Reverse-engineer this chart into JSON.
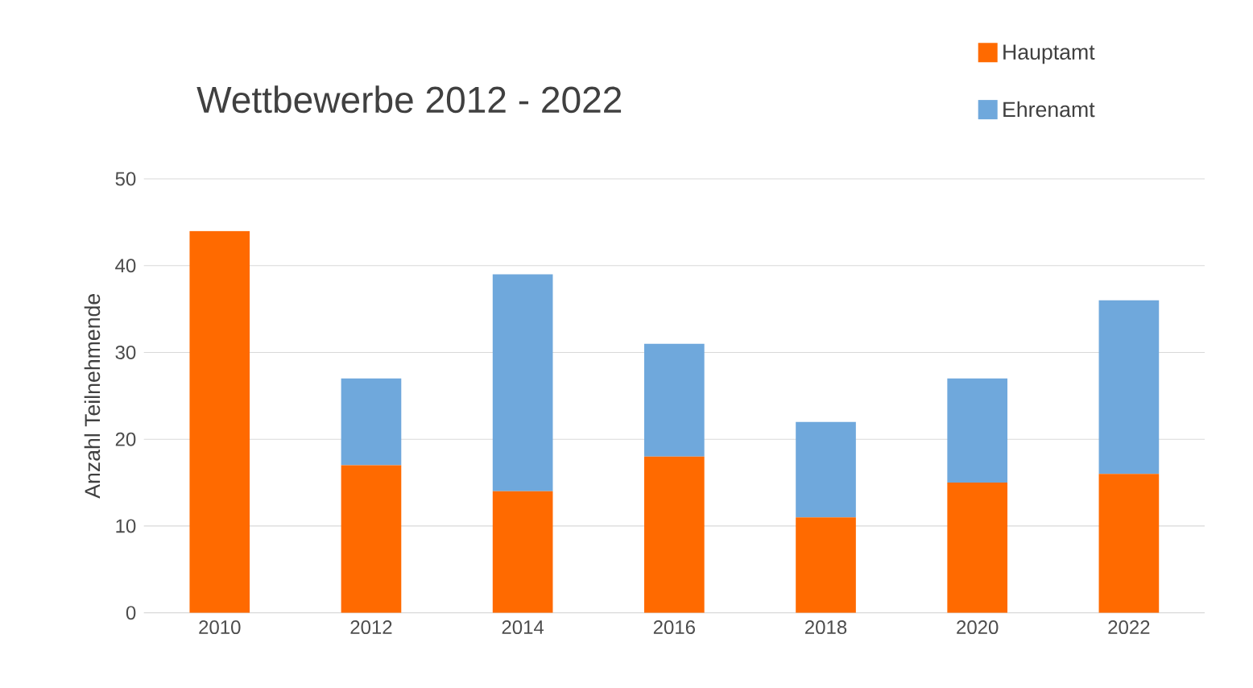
{
  "chart_data": {
    "type": "bar",
    "stacked": true,
    "title": "Wettbewerbe 2012 - 2022",
    "ylabel": "Anzahl Teilnehmende",
    "categories": [
      "2010",
      "2012",
      "2014",
      "2016",
      "2018",
      "2020",
      "2022"
    ],
    "ylim": [
      0,
      50
    ],
    "yticks": [
      0,
      10,
      20,
      30,
      40,
      50
    ],
    "grid": "y",
    "legend": "top right",
    "series": [
      {
        "color": "#ff6a00",
        "values": [
          44,
          null,
          null,
          null,
          null,
          null,
          null
        ]
      },
      {
        "name": "Hauptamt",
        "color": "#ff6a00",
        "values": [
          null,
          17,
          14,
          18,
          11,
          15,
          16
        ]
      },
      {
        "name": "Ehrenamt",
        "color": "#6fa8dc",
        "values": [
          null,
          10,
          25,
          13,
          11,
          12,
          20
        ]
      }
    ]
  }
}
